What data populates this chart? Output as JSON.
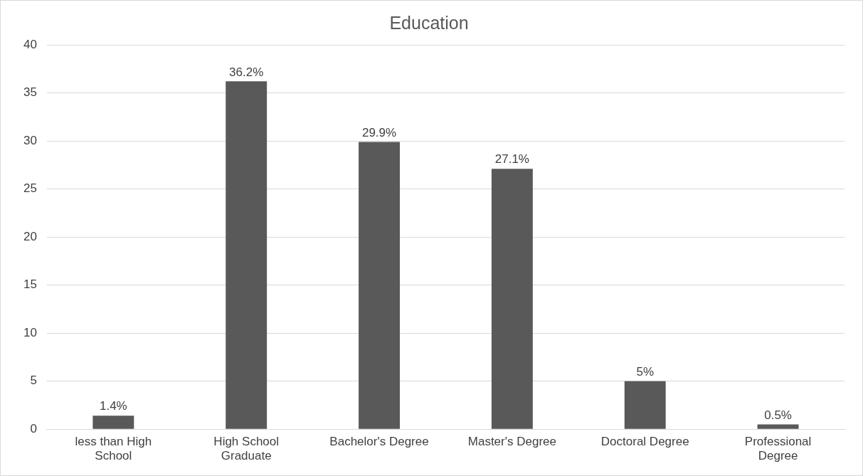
{
  "chart_data": {
    "type": "bar",
    "title": "Education",
    "categories": [
      "less than High School",
      "High School Graduate",
      "Bachelor's Degree",
      "Master's Degree",
      "Doctoral Degree",
      "Professional Degree"
    ],
    "values": [
      1.4,
      36.2,
      29.9,
      27.1,
      5,
      0.5
    ],
    "value_labels": [
      "1.4%",
      "36.2%",
      "29.9%",
      "27.1%",
      "5%",
      "0.5%"
    ],
    "color": "#595959",
    "ylim": [
      0,
      40
    ],
    "yticks": [
      0,
      5,
      10,
      15,
      20,
      25,
      30,
      35,
      40
    ],
    "grid": "y",
    "legend": false
  }
}
